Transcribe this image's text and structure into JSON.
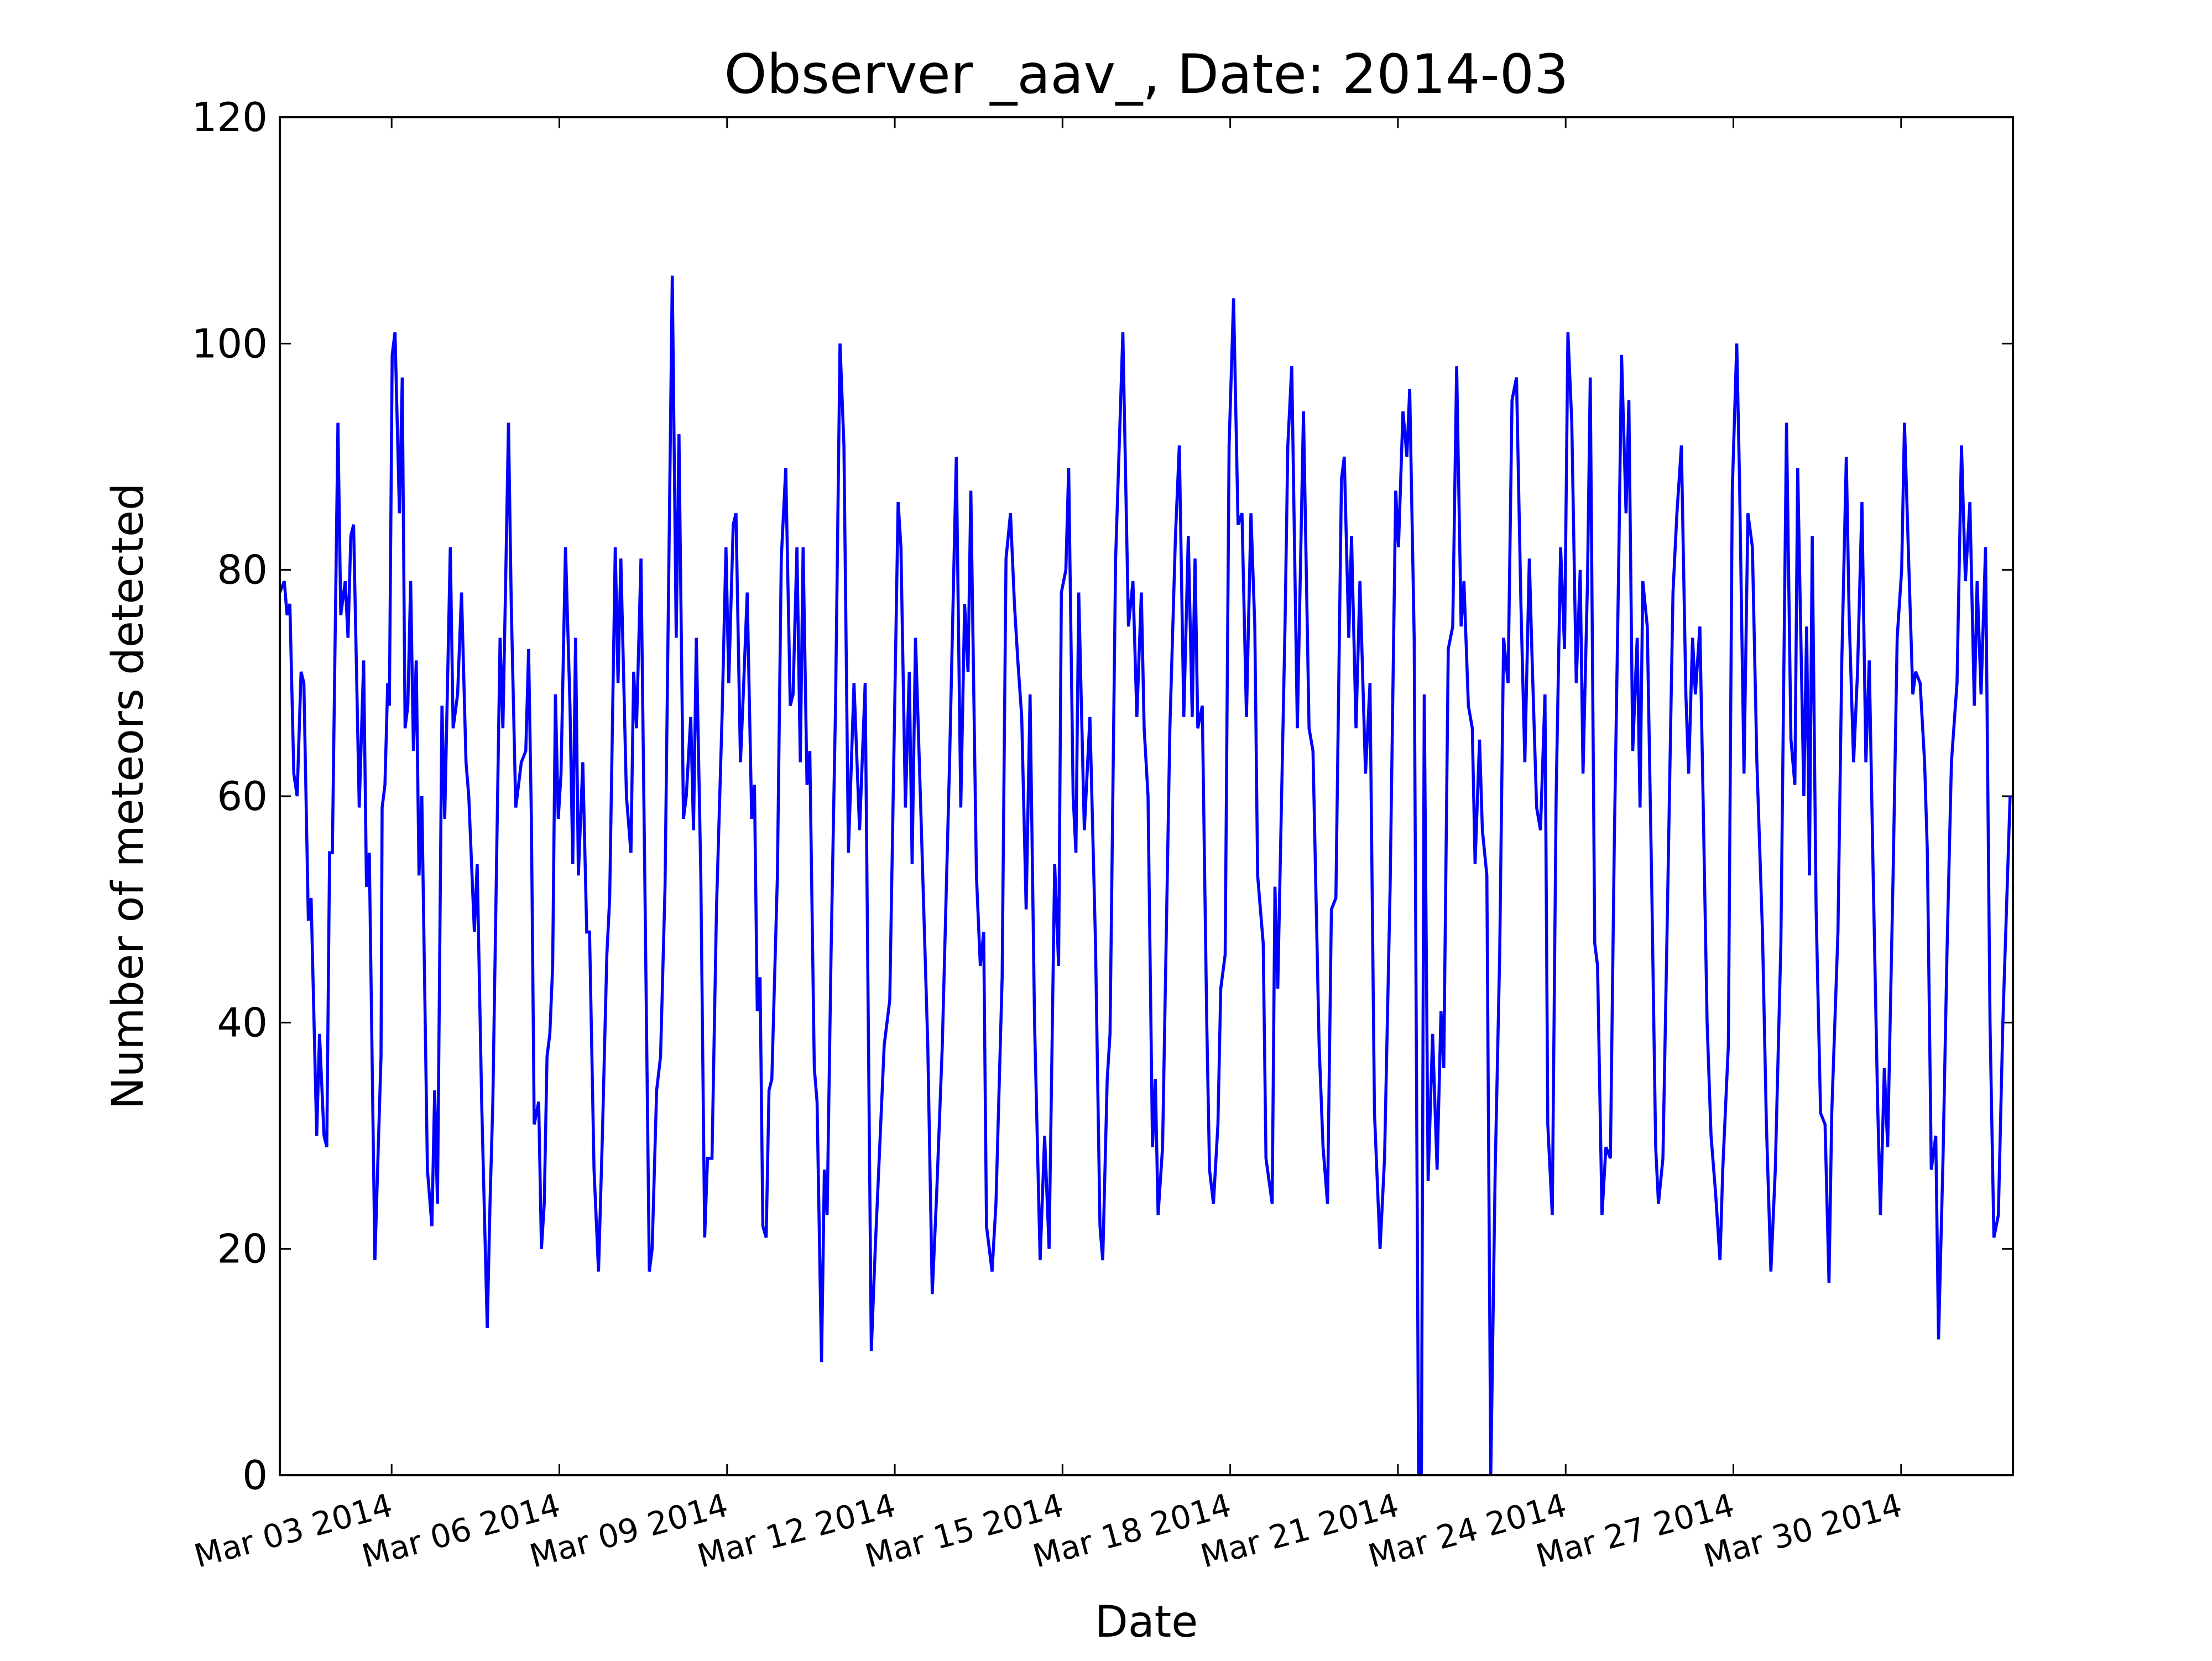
{
  "chart_data": {
    "type": "line",
    "title": "Observer _aav_, Date: 2014-03",
    "x_label": "Date",
    "y_label": "Number of meteors detected",
    "color": "#0000ff",
    "xlim": [
      1,
      32
    ],
    "xticks": [
      {
        "value": 3,
        "label": "Mar 03 2014"
      },
      {
        "value": 6,
        "label": "Mar 06 2014"
      },
      {
        "value": 9,
        "label": "Mar 09 2014"
      },
      {
        "value": 12,
        "label": "Mar 12 2014"
      },
      {
        "value": 15,
        "label": "Mar 15 2014"
      },
      {
        "value": 18,
        "label": "Mar 18 2014"
      },
      {
        "value": 21,
        "label": "Mar 21 2014"
      },
      {
        "value": 24,
        "label": "Mar 24 2014"
      },
      {
        "value": 27,
        "label": "Mar 27 2014"
      },
      {
        "value": 30,
        "label": "Mar 30 2014"
      }
    ],
    "ylim": [
      0,
      120
    ],
    "yticks": [
      0,
      20,
      40,
      60,
      80,
      100,
      120
    ],
    "x": [
      1.0,
      1.08,
      1.13,
      1.18,
      1.25,
      1.31,
      1.38,
      1.43,
      1.51,
      1.56,
      1.66,
      1.71,
      1.79,
      1.84,
      1.89,
      1.94,
      2.04,
      2.09,
      2.17,
      2.22,
      2.27,
      2.32,
      2.42,
      2.5,
      2.55,
      2.6,
      2.7,
      2.81,
      2.83,
      2.88,
      2.93,
      2.96,
      3.01,
      3.06,
      3.14,
      3.19,
      3.24,
      3.29,
      3.34,
      3.39,
      3.44,
      3.49,
      3.54,
      3.64,
      3.72,
      3.77,
      3.82,
      3.9,
      3.95,
      4.0,
      4.05,
      4.1,
      4.18,
      4.25,
      4.33,
      4.38,
      4.48,
      4.53,
      4.61,
      4.71,
      4.76,
      4.81,
      4.94,
      4.99,
      5.04,
      5.09,
      5.14,
      5.22,
      5.27,
      5.32,
      5.4,
      5.45,
      5.5,
      5.55,
      5.63,
      5.68,
      5.73,
      5.78,
      5.83,
      5.88,
      5.93,
      5.98,
      6.03,
      6.11,
      6.19,
      6.24,
      6.29,
      6.34,
      6.42,
      6.49,
      6.54,
      6.62,
      6.7,
      6.77,
      6.85,
      6.9,
      7.0,
      7.05,
      7.1,
      7.2,
      7.28,
      7.33,
      7.38,
      7.46,
      7.53,
      7.61,
      7.66,
      7.74,
      7.81,
      7.89,
      8.02,
      8.09,
      8.14,
      8.22,
      8.27,
      8.35,
      8.4,
      8.45,
      8.53,
      8.6,
      8.65,
      8.73,
      8.81,
      8.91,
      8.98,
      9.03,
      9.11,
      9.16,
      9.24,
      9.29,
      9.36,
      9.44,
      9.49,
      9.54,
      9.59,
      9.64,
      9.7,
      9.75,
      9.8,
      9.9,
      9.97,
      10.05,
      10.13,
      10.18,
      10.25,
      10.31,
      10.36,
      10.43,
      10.48,
      10.56,
      10.61,
      10.69,
      10.74,
      10.79,
      10.86,
      10.94,
      11.02,
      11.09,
      11.17,
      11.27,
      11.37,
      11.47,
      11.58,
      11.65,
      11.81,
      11.91,
      12.06,
      12.11,
      12.19,
      12.26,
      12.31,
      12.37,
      12.47,
      12.59,
      12.67,
      12.75,
      12.85,
      12.98,
      13.1,
      13.18,
      13.25,
      13.31,
      13.36,
      13.46,
      13.53,
      13.59,
      13.64,
      13.74,
      13.81,
      13.92,
      13.99,
      14.07,
      14.14,
      14.2,
      14.27,
      14.35,
      14.42,
      14.5,
      14.6,
      14.68,
      14.76,
      14.86,
      14.93,
      14.98,
      15.06,
      15.11,
      15.19,
      15.24,
      15.29,
      15.39,
      15.49,
      15.59,
      15.67,
      15.72,
      15.8,
      15.85,
      15.95,
      16.08,
      16.18,
      16.26,
      16.33,
      16.41,
      16.46,
      16.53,
      16.61,
      16.66,
      16.71,
      16.79,
      16.92,
      17.02,
      17.09,
      17.17,
      17.25,
      17.32,
      17.37,
      17.42,
      17.5,
      17.58,
      17.63,
      17.7,
      17.78,
      17.83,
      17.91,
      17.98,
      18.06,
      18.14,
      18.21,
      18.29,
      18.37,
      18.44,
      18.49,
      18.59,
      18.64,
      18.75,
      18.8,
      18.85,
      18.98,
      19.03,
      19.1,
      19.2,
      19.31,
      19.41,
      19.48,
      19.59,
      19.66,
      19.74,
      19.81,
      19.89,
      19.99,
      20.04,
      20.12,
      20.17,
      20.25,
      20.32,
      20.42,
      20.5,
      20.58,
      20.68,
      20.76,
      20.86,
      20.96,
      21.01,
      21.09,
      21.16,
      21.21,
      21.29,
      21.37,
      21.42,
      21.47,
      21.54,
      21.62,
      21.7,
      21.77,
      21.82,
      21.9,
      21.98,
      22.05,
      22.13,
      22.18,
      22.26,
      22.33,
      22.38,
      22.46,
      22.51,
      22.59,
      22.66,
      22.74,
      22.82,
      22.89,
      22.97,
      23.04,
      23.12,
      23.2,
      23.27,
      23.35,
      23.4,
      23.48,
      23.55,
      23.63,
      23.68,
      23.76,
      23.83,
      23.91,
      23.98,
      24.04,
      24.11,
      24.19,
      24.26,
      24.31,
      24.39,
      24.44,
      24.52,
      24.57,
      24.65,
      24.72,
      24.8,
      24.87,
      24.95,
      25.0,
      25.08,
      25.13,
      25.2,
      25.28,
      25.33,
      25.38,
      25.46,
      25.54,
      25.61,
      25.66,
      25.74,
      25.81,
      25.92,
      25.99,
      26.07,
      26.15,
      26.2,
      26.27,
      26.32,
      26.4,
      26.45,
      26.53,
      26.6,
      26.68,
      26.76,
      26.81,
      26.91,
      26.98,
      27.06,
      27.11,
      27.19,
      27.26,
      27.34,
      27.42,
      27.52,
      27.59,
      27.67,
      27.75,
      27.85,
      27.95,
      28.03,
      28.1,
      28.15,
      28.26,
      28.31,
      28.36,
      28.41,
      28.48,
      28.56,
      28.64,
      28.71,
      28.76,
      28.87,
      28.94,
      29.02,
      29.07,
      29.15,
      29.22,
      29.3,
      29.37,
      29.43,
      29.5,
      29.58,
      29.63,
      29.7,
      29.76,
      29.86,
      29.93,
      30.01,
      30.06,
      30.14,
      30.21,
      30.26,
      30.34,
      30.42,
      30.47,
      30.54,
      30.62,
      30.67,
      30.75,
      30.82,
      30.9,
      31.0,
      31.08,
      31.15,
      31.23,
      31.31,
      31.36,
      31.43,
      31.51,
      31.59,
      31.66,
      31.74,
      31.82,
      31.95
    ],
    "values": [
      78,
      79,
      76,
      77,
      62,
      60,
      71,
      70,
      49,
      51,
      30,
      39,
      30,
      29,
      55,
      55,
      93,
      76,
      79,
      74,
      83,
      84,
      59,
      72,
      52,
      55,
      19,
      37,
      59,
      61,
      70,
      68,
      99,
      101,
      85,
      97,
      66,
      68,
      79,
      64,
      72,
      53,
      60,
      27,
      22,
      34,
      24,
      68,
      58,
      70,
      82,
      66,
      69,
      78,
      63,
      60,
      48,
      54,
      33,
      13,
      24,
      33,
      74,
      66,
      79,
      93,
      77,
      59,
      61,
      63,
      64,
      73,
      58,
      31,
      33,
      20,
      24,
      37,
      39,
      45,
      69,
      58,
      62,
      82,
      68,
      54,
      74,
      53,
      63,
      48,
      48,
      27,
      18,
      30,
      46,
      51,
      82,
      70,
      81,
      60,
      55,
      71,
      66,
      81,
      52,
      18,
      20,
      34,
      37,
      52,
      106,
      74,
      92,
      58,
      60,
      67,
      57,
      74,
      53,
      21,
      28,
      28,
      50,
      67,
      82,
      70,
      84,
      85,
      63,
      69,
      78,
      58,
      61,
      41,
      44,
      22,
      21,
      34,
      35,
      53,
      81,
      89,
      68,
      69,
      82,
      63,
      82,
      61,
      64,
      36,
      33,
      10,
      27,
      23,
      46,
      68,
      100,
      91,
      55,
      70,
      57,
      70,
      11,
      20,
      38,
      42,
      86,
      82,
      59,
      71,
      54,
      74,
      58,
      38,
      16,
      25,
      38,
      63,
      90,
      59,
      77,
      71,
      87,
      53,
      45,
      48,
      22,
      18,
      24,
      44,
      81,
      85,
      77,
      72,
      67,
      50,
      69,
      40,
      19,
      30,
      20,
      54,
      45,
      78,
      80,
      89,
      60,
      55,
      78,
      57,
      67,
      47,
      22,
      19,
      35,
      39,
      81,
      101,
      75,
      79,
      67,
      78,
      66,
      60,
      29,
      35,
      23,
      29,
      66,
      83,
      91,
      67,
      83,
      67,
      81,
      66,
      68,
      40,
      27,
      24,
      31,
      43,
      46,
      91,
      104,
      84,
      85,
      67,
      85,
      75,
      53,
      47,
      28,
      24,
      52,
      43,
      75,
      91,
      98,
      66,
      94,
      66,
      64,
      38,
      29,
      24,
      50,
      51,
      88,
      90,
      74,
      83,
      66,
      79,
      62,
      70,
      32,
      20,
      28,
      52,
      87,
      82,
      94,
      90,
      96,
      74,
      0,
      0,
      69,
      26,
      39,
      27,
      41,
      36,
      73,
      75,
      98,
      75,
      79,
      68,
      66,
      54,
      65,
      57,
      53,
      0,
      27,
      46,
      74,
      70,
      95,
      97,
      77,
      63,
      81,
      72,
      59,
      57,
      69,
      31,
      23,
      60,
      82,
      73,
      101,
      93,
      70,
      80,
      62,
      79,
      97,
      47,
      45,
      23,
      29,
      28,
      56,
      81,
      99,
      85,
      95,
      64,
      74,
      59,
      79,
      75,
      52,
      29,
      24,
      28,
      47,
      78,
      85,
      91,
      69,
      62,
      74,
      69,
      75,
      62,
      40,
      30,
      25,
      19,
      27,
      38,
      87,
      100,
      88,
      62,
      85,
      82,
      63,
      48,
      31,
      18,
      27,
      47,
      93,
      65,
      61,
      89,
      60,
      75,
      53,
      83,
      50,
      32,
      31,
      17,
      32,
      48,
      72,
      90,
      76,
      63,
      71,
      86,
      63,
      72,
      53,
      33,
      23,
      36,
      29,
      54,
      74,
      80,
      93,
      80,
      69,
      71,
      70,
      63,
      55,
      27,
      30,
      12,
      28,
      46,
      63,
      70,
      91,
      79,
      86,
      68,
      79,
      69,
      82,
      40,
      21,
      23,
      40,
      60
    ]
  }
}
